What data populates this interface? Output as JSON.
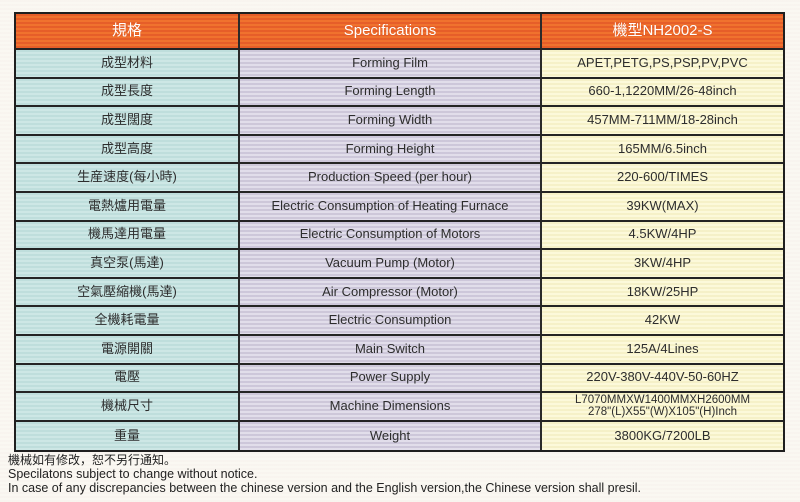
{
  "table": {
    "header": {
      "spec_cn": "規格",
      "spec_en": "Specifications",
      "model": "機型NH2002-S"
    },
    "rows": [
      {
        "cn": "成型材料",
        "en": "Forming Film",
        "value": "APET,PETG,PS,PSP,PV,PVC"
      },
      {
        "cn": "成型長度",
        "en": "Forming Length",
        "value": "660-1,1220MM/26-48inch"
      },
      {
        "cn": "成型闊度",
        "en": "Forming Width",
        "value": "457MM-711MM/18-28inch"
      },
      {
        "cn": "成型高度",
        "en": "Forming Height",
        "value": "165MM/6.5inch"
      },
      {
        "cn": "生産速度(每小時)",
        "en": "Production Speed (per hour)",
        "value": "220-600/TIMES"
      },
      {
        "cn": "電熱爐用電量",
        "en": "Electric Consumption of Heating Furnace",
        "value": "39KW(MAX)"
      },
      {
        "cn": "機馬達用電量",
        "en": "Electric Consumption of Motors",
        "value": "4.5KW/4HP"
      },
      {
        "cn": "真空泵(馬達)",
        "en": "Vacuum Pump (Motor)",
        "value": "3KW/4HP"
      },
      {
        "cn": "空氣壓縮機(馬達)",
        "en": "Air Compressor (Motor)",
        "value": "18KW/25HP"
      },
      {
        "cn": "全機耗電量",
        "en": "Electric Consumption",
        "value": "42KW"
      },
      {
        "cn": "電源開關",
        "en": "Main Switch",
        "value": "125A/4Lines"
      },
      {
        "cn": "電壓",
        "en": "Power Supply",
        "value": "220V-380V-440V-50-60HZ"
      },
      {
        "cn": "機械尺寸",
        "en": "Machine Dimensions",
        "value": "L7070MMXW1400MMXH2600MM\n278\"(L)X55\"(W)X105\"(H)Inch"
      },
      {
        "cn": "重量",
        "en": "Weight",
        "value": "3800KG/7200LB"
      }
    ]
  },
  "footer": {
    "line1_cn": "機械如有修改，恕不另行通知。",
    "line2_en": "Specilatons subject to change without notice.",
    "line3_en": "In case of any discrepancies between the chinese version and the English version,the Chinese version shall presil."
  },
  "colors": {
    "header_orange": "#ee6e2c",
    "header_stripe": "#e05126",
    "col_cn_cyan": "#c9e5e3",
    "col_en_lavender": "#d9d5e3",
    "col_value_yellow": "#fbf8d5",
    "border": "#242424",
    "header_text": "#ffffff",
    "body_text": "#2d2d2d",
    "page_bg": "#faf8f2"
  }
}
